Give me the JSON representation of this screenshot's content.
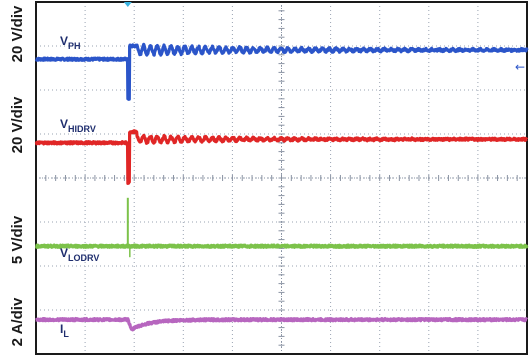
{
  "chart_data": {
    "type": "line",
    "title": "",
    "grid": true,
    "channels": [
      {
        "name": "VPH",
        "label_main": "V",
        "label_sub": "PH",
        "scale": "20 V/div",
        "color": "#2b55c9",
        "baseline_div": 6.8,
        "pre_edge_offset_div": -0.1,
        "edge_time_div": 1.87,
        "undershoot_div": -1.0,
        "overshoot_div": 0.2,
        "ringing_amplitude_div": 0.22,
        "ringing_period_div": 0.14,
        "ringing_decay_div": 3.0
      },
      {
        "name": "VHIDRV",
        "label_main": "V",
        "label_sub": "HIDRV",
        "scale": "20 V/div",
        "color": "#e02626",
        "baseline_div": 4.8,
        "pre_edge_offset_div": 0.0,
        "edge_time_div": 1.87,
        "undershoot_div": -0.9,
        "overshoot_div": 0.25,
        "ringing_amplitude_div": 0.16,
        "ringing_period_div": 0.14,
        "ringing_decay_div": 2.2
      },
      {
        "name": "VLODRV",
        "label_main": "V",
        "label_sub": "LODRV",
        "scale": "5 V/div",
        "color": "#7cc24a",
        "baseline_div": 2.45,
        "edge_time_div": 1.87,
        "spike_div": 1.1
      },
      {
        "name": "IL",
        "label_main": "I",
        "label_sub": "L",
        "scale": "2 A/div",
        "color": "#b766bf",
        "baseline_div": 0.78,
        "edge_time_div": 1.87,
        "dip_div": -0.22,
        "recovery_div": 0.9
      }
    ],
    "time_divisions": 10,
    "vertical_divisions": 8,
    "xlim": [
      0,
      10
    ],
    "ylim": [
      0,
      8
    ],
    "trigger_marker_div": 1.87,
    "right_marker": "←"
  }
}
